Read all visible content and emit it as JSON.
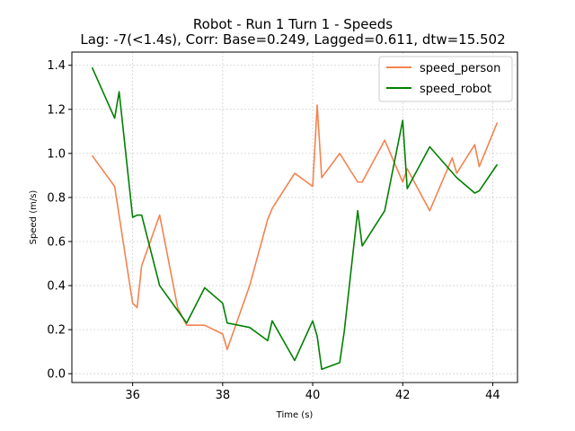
{
  "chart_data": {
    "type": "line",
    "title": "Robot - Run 1 Turn 1 - Speeds",
    "subtitle": "Lag: -7(<1.4s), Corr: Base=0.249, Lagged=0.611, dtw=15.502",
    "xlabel": "Time (s)",
    "ylabel": "Speed (m/s)",
    "xlim": [
      34.65,
      44.55
    ],
    "ylim": [
      -0.04,
      1.46
    ],
    "xticks": [
      36,
      38,
      40,
      42,
      44
    ],
    "xtick_labels": [
      "36",
      "38",
      "40",
      "42",
      "44"
    ],
    "yticks": [
      0.0,
      0.2,
      0.4,
      0.6,
      0.8,
      1.0,
      1.2,
      1.4
    ],
    "ytick_labels": [
      "0.0",
      "0.2",
      "0.4",
      "0.6",
      "0.8",
      "1.0",
      "1.2",
      "1.4"
    ],
    "grid": true,
    "legend_position": "top-right",
    "series": [
      {
        "name": "speed_person",
        "color": "#f4834f",
        "x": [
          35.1,
          35.6,
          36.0,
          36.1,
          36.2,
          36.6,
          37.0,
          37.2,
          37.6,
          38.0,
          38.1,
          38.6,
          39.0,
          39.1,
          39.6,
          40.0,
          40.1,
          40.2,
          40.6,
          41.0,
          41.1,
          41.6,
          42.0,
          42.1,
          42.6,
          43.1,
          43.2,
          43.6,
          43.7,
          44.1
        ],
        "y": [
          0.99,
          0.85,
          0.32,
          0.3,
          0.49,
          0.72,
          0.3,
          0.22,
          0.22,
          0.18,
          0.11,
          0.4,
          0.7,
          0.75,
          0.91,
          0.85,
          1.22,
          0.89,
          1.0,
          0.87,
          0.87,
          1.06,
          0.87,
          0.93,
          0.74,
          0.98,
          0.91,
          1.04,
          0.94,
          1.14
        ]
      },
      {
        "name": "speed_robot",
        "color": "#008000",
        "x": [
          35.1,
          35.6,
          35.7,
          36.0,
          36.1,
          36.2,
          36.6,
          37.2,
          37.6,
          38.0,
          38.1,
          38.6,
          39.0,
          39.1,
          39.6,
          40.0,
          40.1,
          40.2,
          40.6,
          40.7,
          41.0,
          41.1,
          41.6,
          42.0,
          42.1,
          42.6,
          43.2,
          43.6,
          43.7,
          44.1
        ],
        "y": [
          1.39,
          1.16,
          1.28,
          0.71,
          0.72,
          0.72,
          0.4,
          0.23,
          0.39,
          0.32,
          0.23,
          0.21,
          0.15,
          0.24,
          0.06,
          0.24,
          0.17,
          0.02,
          0.05,
          0.19,
          0.74,
          0.58,
          0.74,
          1.15,
          0.84,
          1.03,
          0.89,
          0.82,
          0.83,
          0.95
        ]
      }
    ]
  }
}
